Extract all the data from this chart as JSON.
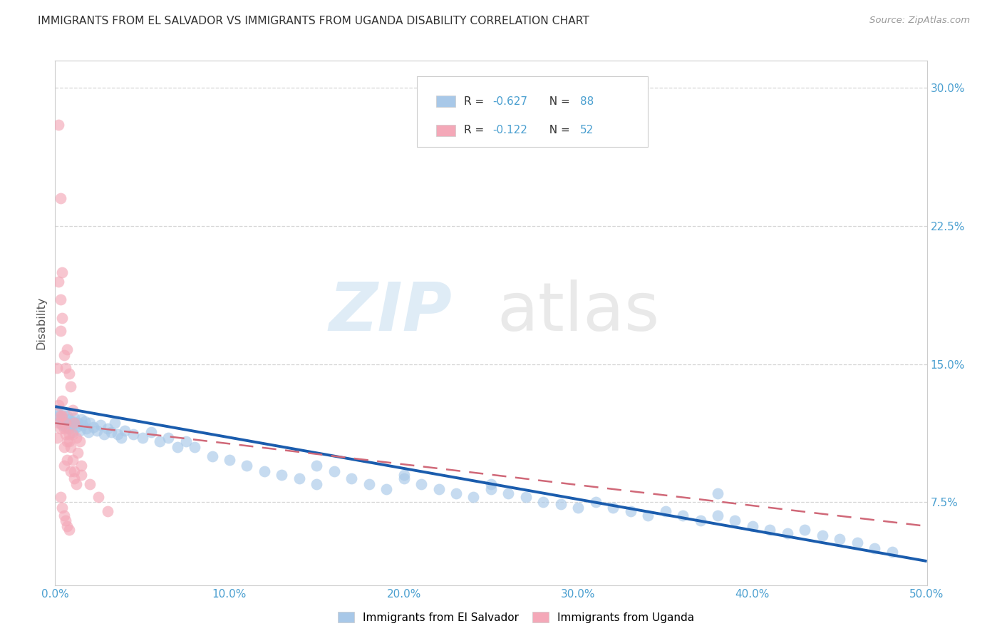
{
  "title": "IMMIGRANTS FROM EL SALVADOR VS IMMIGRANTS FROM UGANDA DISABILITY CORRELATION CHART",
  "source": "Source: ZipAtlas.com",
  "ylabel": "Disability",
  "xlim": [
    0.0,
    0.5
  ],
  "ylim": [
    0.03,
    0.315
  ],
  "yticks": [
    0.075,
    0.15,
    0.225,
    0.3
  ],
  "ytick_labels": [
    "7.5%",
    "15.0%",
    "22.5%",
    "30.0%"
  ],
  "xticks": [
    0.0,
    0.1,
    0.2,
    0.3,
    0.4,
    0.5
  ],
  "xtick_labels": [
    "0.0%",
    "10.0%",
    "20.0%",
    "30.0%",
    "40.0%",
    "50.0%"
  ],
  "el_salvador_color": "#a8c8e8",
  "uganda_color": "#f4a8b8",
  "line_el_salvador": "#1a5cad",
  "line_uganda": "#d06878",
  "R_el_salvador": -0.627,
  "N_el_salvador": 88,
  "R_uganda": -0.122,
  "N_uganda": 52,
  "tick_color": "#4a9fd0",
  "grid_color": "#cccccc",
  "background_color": "#ffffff",
  "el_line_y_start": 0.127,
  "el_line_y_end": 0.043,
  "ug_line_y_start": 0.118,
  "ug_line_y_end": 0.062,
  "el_salvador_x": [
    0.001,
    0.002,
    0.003,
    0.003,
    0.004,
    0.004,
    0.005,
    0.005,
    0.006,
    0.007,
    0.007,
    0.008,
    0.008,
    0.009,
    0.01,
    0.01,
    0.011,
    0.012,
    0.013,
    0.014,
    0.015,
    0.016,
    0.017,
    0.018,
    0.019,
    0.02,
    0.022,
    0.024,
    0.026,
    0.028,
    0.03,
    0.032,
    0.034,
    0.036,
    0.038,
    0.04,
    0.045,
    0.05,
    0.055,
    0.06,
    0.065,
    0.07,
    0.075,
    0.08,
    0.09,
    0.1,
    0.11,
    0.12,
    0.13,
    0.14,
    0.15,
    0.16,
    0.17,
    0.18,
    0.19,
    0.2,
    0.21,
    0.22,
    0.23,
    0.24,
    0.25,
    0.26,
    0.27,
    0.28,
    0.29,
    0.3,
    0.31,
    0.32,
    0.33,
    0.34,
    0.35,
    0.36,
    0.37,
    0.38,
    0.39,
    0.4,
    0.41,
    0.42,
    0.43,
    0.44,
    0.45,
    0.46,
    0.47,
    0.48,
    0.15,
    0.2,
    0.25,
    0.38
  ],
  "el_salvador_y": [
    0.125,
    0.122,
    0.12,
    0.118,
    0.121,
    0.117,
    0.119,
    0.124,
    0.116,
    0.118,
    0.122,
    0.115,
    0.12,
    0.117,
    0.113,
    0.119,
    0.121,
    0.116,
    0.118,
    0.114,
    0.12,
    0.117,
    0.119,
    0.115,
    0.113,
    0.118,
    0.116,
    0.114,
    0.117,
    0.112,
    0.115,
    0.113,
    0.118,
    0.112,
    0.11,
    0.114,
    0.112,
    0.11,
    0.113,
    0.108,
    0.11,
    0.105,
    0.108,
    0.105,
    0.1,
    0.098,
    0.095,
    0.092,
    0.09,
    0.088,
    0.085,
    0.092,
    0.088,
    0.085,
    0.082,
    0.088,
    0.085,
    0.082,
    0.08,
    0.078,
    0.082,
    0.08,
    0.078,
    0.075,
    0.074,
    0.072,
    0.075,
    0.072,
    0.07,
    0.068,
    0.07,
    0.068,
    0.065,
    0.068,
    0.065,
    0.062,
    0.06,
    0.058,
    0.06,
    0.057,
    0.055,
    0.053,
    0.05,
    0.048,
    0.095,
    0.09,
    0.085,
    0.08
  ],
  "uganda_x": [
    0.001,
    0.001,
    0.002,
    0.002,
    0.003,
    0.003,
    0.003,
    0.004,
    0.004,
    0.004,
    0.005,
    0.005,
    0.005,
    0.006,
    0.006,
    0.007,
    0.007,
    0.008,
    0.008,
    0.009,
    0.009,
    0.01,
    0.01,
    0.011,
    0.011,
    0.012,
    0.012,
    0.013,
    0.014,
    0.015,
    0.002,
    0.003,
    0.004,
    0.005,
    0.006,
    0.007,
    0.008,
    0.009,
    0.01,
    0.011,
    0.015,
    0.02,
    0.025,
    0.03,
    0.003,
    0.004,
    0.005,
    0.006,
    0.007,
    0.008,
    0.002,
    0.003
  ],
  "uganda_y": [
    0.148,
    0.11,
    0.195,
    0.118,
    0.168,
    0.185,
    0.115,
    0.2,
    0.122,
    0.175,
    0.155,
    0.115,
    0.095,
    0.148,
    0.112,
    0.158,
    0.108,
    0.145,
    0.112,
    0.138,
    0.105,
    0.125,
    0.098,
    0.118,
    0.092,
    0.11,
    0.085,
    0.102,
    0.108,
    0.095,
    0.128,
    0.122,
    0.13,
    0.105,
    0.118,
    0.098,
    0.108,
    0.092,
    0.112,
    0.088,
    0.09,
    0.085,
    0.078,
    0.07,
    0.078,
    0.072,
    0.068,
    0.065,
    0.062,
    0.06,
    0.28,
    0.24
  ]
}
